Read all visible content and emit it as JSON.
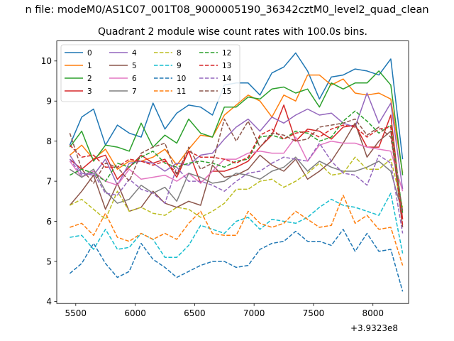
{
  "figure": {
    "suptitle": "n file: modeM0/AS1C07_001T08_9000005190_36342cztM0_level2_quad_clean"
  },
  "chart_data": {
    "type": "line",
    "title": "Quadrant 2 module wise count rates with 100.0s bins.",
    "xlabel": "",
    "ylabel": "",
    "x_offset_text": "+3.9323e8",
    "xlim": [
      5340,
      8300
    ],
    "ylim": [
      3.95,
      10.5
    ],
    "xticks": [
      5500,
      6000,
      6500,
      7000,
      7500,
      8000
    ],
    "yticks": [
      4,
      5,
      6,
      7,
      8,
      9,
      10
    ],
    "grid": false,
    "legend": {
      "placement": "top-left",
      "ncol": 4
    },
    "x": [
      5450,
      5550,
      5650,
      5750,
      5850,
      5950,
      6050,
      6150,
      6250,
      6350,
      6450,
      6550,
      6650,
      6750,
      6850,
      6950,
      7050,
      7150,
      7250,
      7350,
      7450,
      7550,
      7650,
      7750,
      7850,
      7950,
      8050,
      8150,
      8250
    ],
    "series": [
      {
        "name": "0",
        "color": "#1f77b4",
        "dash": "solid",
        "values": [
          7.9,
          8.6,
          8.8,
          7.9,
          8.4,
          8.2,
          8.1,
          8.95,
          8.3,
          8.7,
          8.9,
          8.85,
          8.65,
          9.4,
          9.45,
          9.45,
          9.15,
          9.7,
          9.85,
          10.2,
          9.75,
          9.05,
          9.6,
          9.65,
          9.8,
          9.75,
          9.65,
          10.05,
          7.55
        ]
      },
      {
        "name": "1",
        "color": "#ff7f0e",
        "dash": "solid",
        "values": [
          7.65,
          7.9,
          7.55,
          7.8,
          7.3,
          7.5,
          7.5,
          7.6,
          7.8,
          7.4,
          7.8,
          8.15,
          8.1,
          8.65,
          8.9,
          9.15,
          9.0,
          8.6,
          9.15,
          9.0,
          9.65,
          9.65,
          9.4,
          9.55,
          9.2,
          9.15,
          9.2,
          9.05,
          7.2
        ]
      },
      {
        "name": "2",
        "color": "#2ca02c",
        "dash": "solid",
        "values": [
          7.85,
          8.25,
          7.5,
          7.9,
          7.85,
          7.75,
          8.45,
          7.85,
          8.15,
          7.95,
          8.55,
          8.2,
          8.1,
          8.85,
          8.85,
          9.1,
          9.05,
          9.3,
          9.35,
          9.2,
          9.3,
          8.85,
          9.45,
          9.3,
          9.45,
          9.45,
          9.75,
          9.4,
          7.15
        ]
      },
      {
        "name": "3",
        "color": "#d62728",
        "dash": "solid",
        "values": [
          7.55,
          7.3,
          7.55,
          7.65,
          7.05,
          7.35,
          7.65,
          7.45,
          7.55,
          7.1,
          7.75,
          6.95,
          7.25,
          7.25,
          7.35,
          7.5,
          7.85,
          8.15,
          8.9,
          8.0,
          8.3,
          8.25,
          8.05,
          8.35,
          8.4,
          7.85,
          7.85,
          8.65,
          6.05
        ]
      },
      {
        "name": "4",
        "color": "#9467bd",
        "dash": "solid",
        "values": [
          7.65,
          7.2,
          7.15,
          7.55,
          6.9,
          7.45,
          7.5,
          7.45,
          7.25,
          7.45,
          7.4,
          7.65,
          7.7,
          8.05,
          8.35,
          8.55,
          8.25,
          8.6,
          8.45,
          8.65,
          8.8,
          8.65,
          8.7,
          8.45,
          8.35,
          9.2,
          8.45,
          8.95,
          6.8
        ]
      },
      {
        "name": "5",
        "color": "#8c564b",
        "dash": "solid",
        "values": [
          6.4,
          6.75,
          7.15,
          6.3,
          6.95,
          6.25,
          6.35,
          6.75,
          6.45,
          6.35,
          6.5,
          6.4,
          7.4,
          7.1,
          7.15,
          7.3,
          7.65,
          7.4,
          7.25,
          7.55,
          7.05,
          7.25,
          7.5,
          7.95,
          8.45,
          7.6,
          8.0,
          8.25,
          5.85
        ]
      },
      {
        "name": "6",
        "color": "#e377c2",
        "dash": "solid",
        "values": [
          7.5,
          7.1,
          7.25,
          7.0,
          6.9,
          7.3,
          7.05,
          7.1,
          7.15,
          7.0,
          7.2,
          6.95,
          7.25,
          7.55,
          7.55,
          7.7,
          7.75,
          7.7,
          7.7,
          8.1,
          7.5,
          7.9,
          8.0,
          7.95,
          7.95,
          7.85,
          7.8,
          7.75,
          6.75
        ]
      },
      {
        "name": "7",
        "color": "#7f7f7f",
        "dash": "solid",
        "values": [
          7.3,
          7.1,
          7.3,
          6.75,
          6.45,
          6.55,
          6.9,
          6.7,
          6.85,
          6.5,
          7.2,
          7.1,
          6.95,
          7.0,
          7.2,
          7.15,
          7.05,
          7.25,
          7.35,
          7.6,
          7.25,
          7.5,
          7.35,
          7.25,
          7.25,
          7.35,
          7.5,
          7.25,
          6.2
        ]
      },
      {
        "name": "8",
        "color": "#bcbd22",
        "dash": "dashed",
        "values": [
          6.4,
          6.55,
          6.3,
          6.05,
          6.75,
          6.25,
          6.35,
          6.2,
          6.15,
          6.35,
          6.3,
          6.1,
          6.25,
          6.45,
          6.8,
          6.8,
          7.0,
          7.05,
          6.85,
          7.0,
          7.2,
          7.45,
          7.15,
          7.2,
          7.6,
          7.3,
          7.3,
          7.55,
          6.35
        ]
      },
      {
        "name": "9",
        "color": "#17becf",
        "dash": "dashed",
        "values": [
          5.6,
          5.65,
          5.3,
          5.8,
          5.3,
          5.35,
          5.7,
          5.55,
          5.1,
          5.1,
          5.4,
          5.9,
          5.8,
          5.7,
          6.0,
          6.1,
          5.8,
          6.05,
          6.0,
          5.95,
          6.1,
          6.35,
          6.55,
          6.4,
          6.35,
          6.25,
          6.15,
          6.7,
          5.2
        ]
      },
      {
        "name": "10",
        "color": "#1f77b4",
        "dash": "dashed",
        "values": [
          4.7,
          4.95,
          5.45,
          4.95,
          4.6,
          4.75,
          5.45,
          5.05,
          4.85,
          4.6,
          4.75,
          4.9,
          5.0,
          5.0,
          4.85,
          4.9,
          5.3,
          5.45,
          5.5,
          5.75,
          5.5,
          5.5,
          5.4,
          5.8,
          5.25,
          5.7,
          5.25,
          5.3,
          4.25
        ]
      },
      {
        "name": "11",
        "color": "#ff7f0e",
        "dash": "dashed",
        "values": [
          5.85,
          5.95,
          5.65,
          6.2,
          5.6,
          5.5,
          5.7,
          5.55,
          5.7,
          5.55,
          5.95,
          6.25,
          5.7,
          5.65,
          5.65,
          6.25,
          5.95,
          5.85,
          5.95,
          6.25,
          6.05,
          5.85,
          5.9,
          6.65,
          5.95,
          6.15,
          5.8,
          5.85,
          4.9
        ]
      },
      {
        "name": "12",
        "color": "#2ca02c",
        "dash": "dashed",
        "values": [
          7.15,
          7.3,
          7.2,
          7.0,
          7.45,
          7.35,
          7.6,
          7.75,
          7.45,
          7.35,
          7.45,
          7.5,
          7.45,
          7.35,
          7.5,
          7.55,
          8.1,
          8.15,
          8.05,
          8.25,
          8.2,
          8.0,
          8.1,
          8.5,
          8.75,
          8.5,
          8.2,
          8.4,
          6.2
        ]
      },
      {
        "name": "13",
        "color": "#d62728",
        "dash": "dashed",
        "values": [
          7.9,
          7.6,
          7.65,
          7.35,
          7.35,
          7.55,
          7.5,
          7.4,
          7.5,
          7.2,
          7.75,
          7.6,
          7.6,
          7.55,
          7.45,
          7.6,
          8.15,
          8.3,
          8.05,
          8.2,
          8.25,
          8.1,
          8.3,
          8.4,
          8.35,
          8.1,
          8.3,
          8.35,
          5.9
        ]
      },
      {
        "name": "14",
        "color": "#9467bd",
        "dash": "dashed",
        "values": [
          7.55,
          7.15,
          7.2,
          6.7,
          6.65,
          7.05,
          6.8,
          6.7,
          6.45,
          7.35,
          7.0,
          7.0,
          6.9,
          6.75,
          7.0,
          7.2,
          7.25,
          7.45,
          7.6,
          7.55,
          7.5,
          7.95,
          7.5,
          7.2,
          7.15,
          6.9,
          7.65,
          7.45,
          5.7
        ]
      },
      {
        "name": "15",
        "color": "#8c564b",
        "dash": "dashed",
        "values": [
          8.2,
          7.3,
          6.95,
          7.45,
          7.35,
          7.0,
          7.7,
          7.85,
          7.95,
          7.15,
          7.85,
          7.3,
          7.45,
          8.55,
          8.0,
          8.5,
          7.85,
          8.2,
          8.15,
          8.0,
          8.05,
          8.35,
          8.4,
          8.45,
          8.55,
          8.15,
          8.35,
          8.1,
          6.25
        ]
      }
    ]
  }
}
